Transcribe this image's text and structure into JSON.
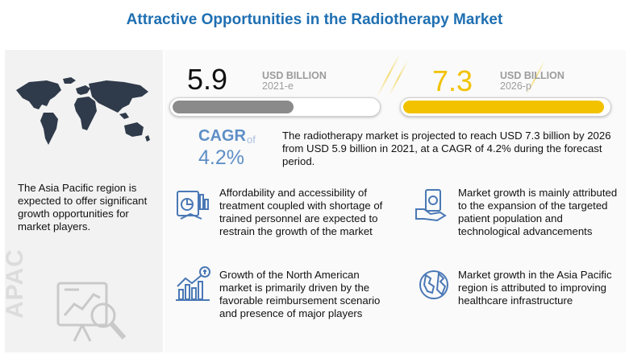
{
  "title": "Attractive Opportunities in the Radiotherapy Market",
  "left_panel": {
    "description": "The Asia Pacific region is expected to offer significant growth opportunities for market players.",
    "region_watermark": "APAC"
  },
  "market_2021": {
    "value": "5.9",
    "unit": "USD BILLION",
    "year": "2021-e",
    "fill_fraction": 0.59,
    "color": "#8a8a8a"
  },
  "market_2026": {
    "value": "7.3",
    "unit": "USD BILLION",
    "year": "2026-p",
    "fill_fraction": 0.98,
    "color": "#f2c200"
  },
  "cagr": {
    "label": "CAGR",
    "of": "of",
    "value": "4.2%"
  },
  "summary": "The radiotherapy market is projected to reach USD 7.3 billion by 2026 from USD 5.9 billion in 2021, at a CAGR of 4.2% during the forecast period.",
  "insights": [
    {
      "icon": "affordability-icon",
      "text": "Affordability and accessibility of treatment coupled with shortage of trained personnel are expected to restrain the growth of the market"
    },
    {
      "icon": "money-hand-icon",
      "text": "Market growth is mainly attributed to the expansion of the targeted patient population and technological advancements"
    },
    {
      "icon": "growth-chart-icon",
      "text": "Growth of the North American market is primarily driven by the favorable reimbursement scenario and presence of major players"
    },
    {
      "icon": "globe-icon",
      "text": "Market growth in the Asia Pacific region is attributed to improving healthcare infrastructure"
    }
  ],
  "colors": {
    "title": "#1f6fb2",
    "accent_blue": "#5e8fc7",
    "accent_yellow": "#f2c200",
    "gray_bar": "#8a8a8a"
  }
}
